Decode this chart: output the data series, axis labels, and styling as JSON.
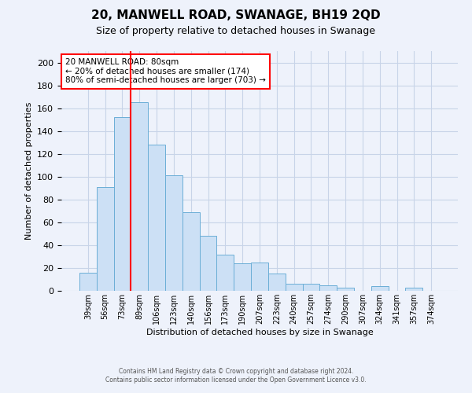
{
  "title": "20, MANWELL ROAD, SWANAGE, BH19 2QD",
  "subtitle": "Size of property relative to detached houses in Swanage",
  "xlabel": "Distribution of detached houses by size in Swanage",
  "ylabel": "Number of detached properties",
  "footer_line1": "Contains HM Land Registry data © Crown copyright and database right 2024.",
  "footer_line2": "Contains public sector information licensed under the Open Government Licence v3.0.",
  "bar_labels": [
    "39sqm",
    "56sqm",
    "73sqm",
    "89sqm",
    "106sqm",
    "123sqm",
    "140sqm",
    "156sqm",
    "173sqm",
    "190sqm",
    "207sqm",
    "223sqm",
    "240sqm",
    "257sqm",
    "274sqm",
    "290sqm",
    "307sqm",
    "324sqm",
    "341sqm",
    "357sqm",
    "374sqm"
  ],
  "bar_values": [
    16,
    91,
    152,
    165,
    128,
    101,
    69,
    48,
    32,
    24,
    25,
    15,
    6,
    6,
    5,
    3,
    0,
    4,
    0,
    3,
    0
  ],
  "bar_color": "#cce0f5",
  "bar_edge_color": "#6baed6",
  "grid_color": "#c8d4e8",
  "background_color": "#eef2fb",
  "ylim": [
    0,
    210
  ],
  "yticks": [
    0,
    20,
    40,
    60,
    80,
    100,
    120,
    140,
    160,
    180,
    200
  ],
  "red_line_index": 3,
  "annotation_title": "20 MANWELL ROAD: 80sqm",
  "annotation_line1": "← 20% of detached houses are smaller (174)",
  "annotation_line2": "80% of semi-detached houses are larger (703) →",
  "annotation_box_color": "white",
  "annotation_box_edge": "red",
  "red_line_color": "red",
  "title_fontsize": 11,
  "subtitle_fontsize": 9,
  "ylabel_fontsize": 8,
  "xlabel_fontsize": 8,
  "tick_fontsize": 8,
  "xtick_fontsize": 7
}
